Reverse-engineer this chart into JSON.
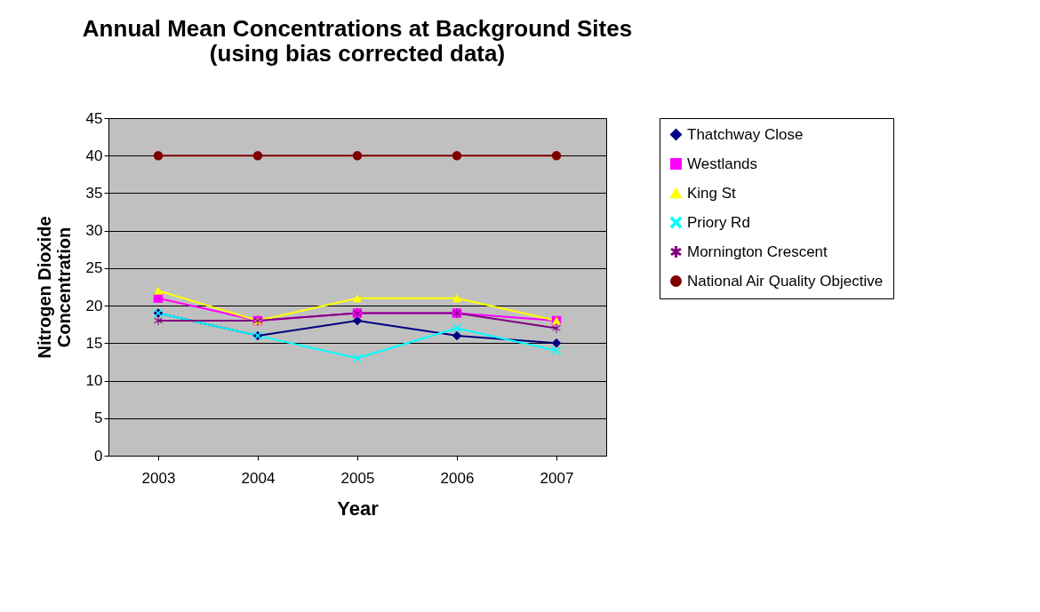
{
  "chart_data": {
    "type": "line",
    "title": "Annual Mean Concentrations at Background Sites\n(using bias corrected data)",
    "xlabel": "Year",
    "ylabel": "Nitrogen Dioxide\nConcentration",
    "categories": [
      "2003",
      "2004",
      "2005",
      "2006",
      "2007"
    ],
    "ylim": [
      0,
      45
    ],
    "yticks": [
      0,
      5,
      10,
      15,
      20,
      25,
      30,
      35,
      40,
      45
    ],
    "grid": "y",
    "legend": "right",
    "series": [
      {
        "name": "Thatchway Close",
        "color": "#000080",
        "marker": "diamond",
        "values": [
          19,
          16,
          18,
          16,
          15
        ]
      },
      {
        "name": "Westlands",
        "color": "#ff00ff",
        "marker": "square",
        "values": [
          21,
          18,
          19,
          19,
          18
        ]
      },
      {
        "name": "King St",
        "color": "#ffff00",
        "marker": "triangle",
        "values": [
          22,
          18,
          21,
          21,
          18
        ]
      },
      {
        "name": "Priory Rd",
        "color": "#00ffff",
        "marker": "cross",
        "values": [
          19,
          16,
          13,
          17,
          14
        ]
      },
      {
        "name": "Mornington Crescent",
        "color": "#800080",
        "marker": "star",
        "values": [
          18,
          18,
          19,
          19,
          17
        ]
      },
      {
        "name": "National Air Quality Objective",
        "color": "#800000",
        "marker": "circle",
        "values": [
          40,
          40,
          40,
          40,
          40
        ]
      }
    ]
  }
}
